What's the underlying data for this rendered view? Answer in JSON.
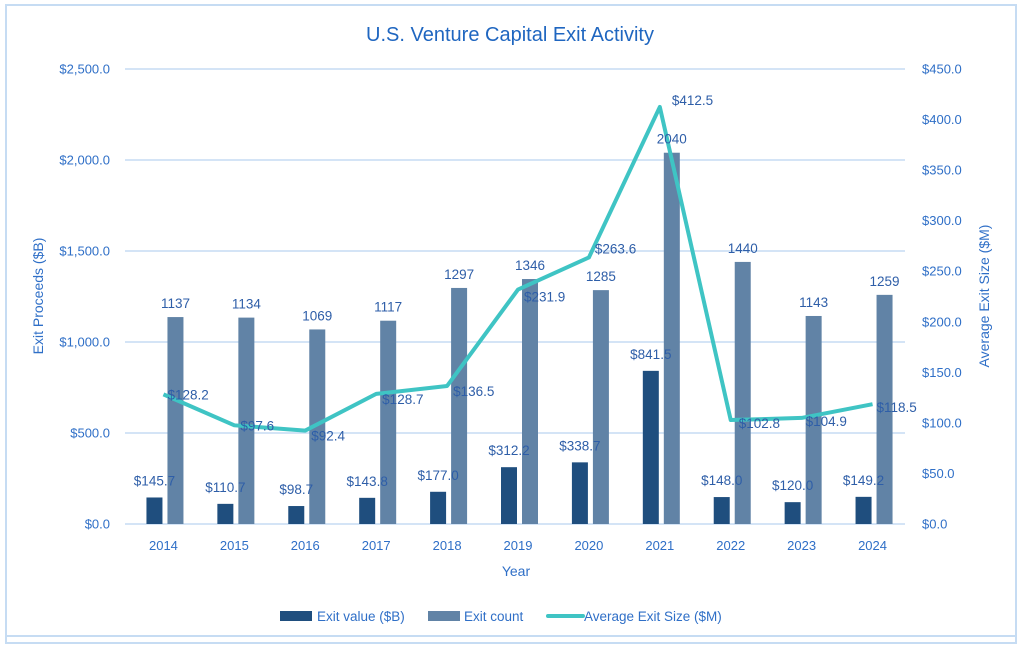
{
  "chart_data": {
    "type": "bar",
    "title": "U.S. Venture Capital Exit Activity",
    "xlabel": "Year",
    "ylabel": "Exit Proceeds ($B)",
    "y2label": "Average Exit Size ($M)",
    "categories": [
      "2014",
      "2015",
      "2016",
      "2017",
      "2018",
      "2019",
      "2020",
      "2021",
      "2022",
      "2023",
      "2024"
    ],
    "ylim": [
      0,
      2500
    ],
    "y2lim": [
      0,
      450
    ],
    "yticks": [
      "$0.0",
      "$500.0",
      "$1,000.0",
      "$1,500.0",
      "$2,000.0",
      "$2,500.0"
    ],
    "y2ticks": [
      "$0.0",
      "$50.0",
      "$100.0",
      "$150.0",
      "$200.0",
      "$250.0",
      "$300.0",
      "$350.0",
      "$400.0",
      "$450.0"
    ],
    "grid": true,
    "legend_position": "bottom",
    "series": [
      {
        "name": "Exit value ($B)",
        "type": "bar",
        "axis": "left",
        "color": "#1f4e7e",
        "values": [
          145.7,
          110.7,
          98.7,
          143.8,
          177.0,
          312.2,
          338.7,
          841.5,
          148.0,
          120.0,
          149.2
        ],
        "labels": [
          "$145.7",
          "$110.7",
          "$98.7",
          "$143.8",
          "$177.0",
          "$312.2",
          "$338.7",
          "$841.5",
          "$148.0",
          "$120.0",
          "$149.2"
        ]
      },
      {
        "name": "Exit count",
        "type": "bar",
        "axis": "left",
        "color": "#6183a6",
        "values": [
          1137,
          1134,
          1069,
          1117,
          1297,
          1346,
          1285,
          2040,
          1440,
          1143,
          1259
        ],
        "labels": [
          "1137",
          "1134",
          "1069",
          "1117",
          "1297",
          "1346",
          "1285",
          "2040",
          "1440",
          "1143",
          "1259"
        ]
      },
      {
        "name": "Average Exit Size ($M)",
        "type": "line",
        "axis": "right",
        "color": "#3fc4c4",
        "values": [
          128.2,
          97.6,
          92.4,
          128.7,
          136.5,
          231.9,
          263.6,
          412.5,
          102.8,
          104.9,
          118.5
        ],
        "labels": [
          "$128.2",
          "$97.6",
          "$92.4",
          "$128.7",
          "$136.5",
          "$231.9",
          "$263.6",
          "$412.5",
          "$102.8",
          "$104.9",
          "$118.5"
        ]
      }
    ]
  }
}
